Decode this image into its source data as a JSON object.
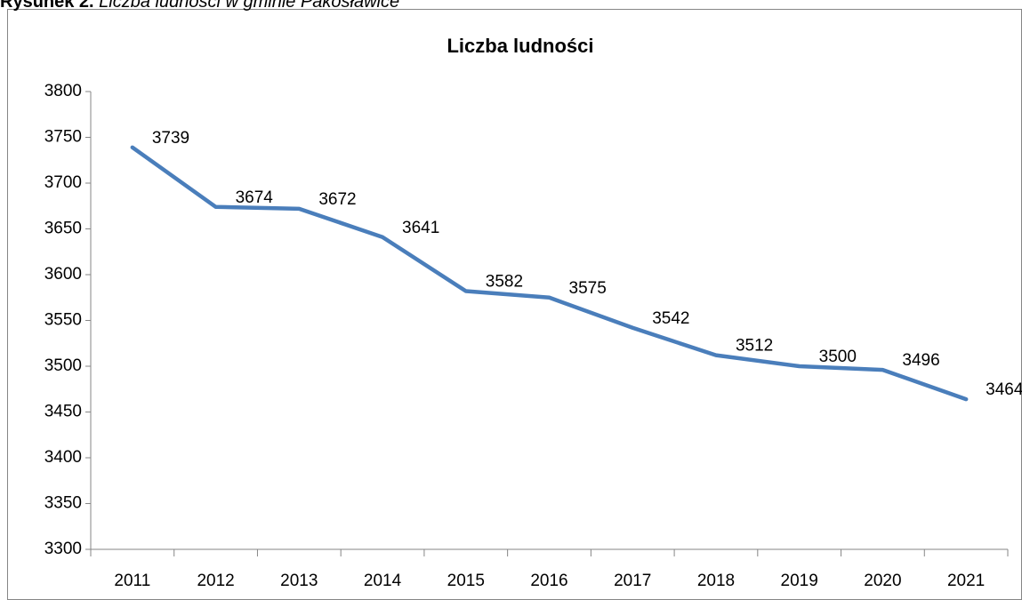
{
  "figure": {
    "label": "Rysunek 2.",
    "caption": "Liczba ludności w gminie Pakosławice"
  },
  "chart_data": {
    "type": "line",
    "title": "Liczba ludności",
    "categories": [
      "2011",
      "2012",
      "2013",
      "2014",
      "2015",
      "2016",
      "2017",
      "2018",
      "2019",
      "2020",
      "2021"
    ],
    "values": [
      3739,
      3674,
      3672,
      3641,
      3582,
      3575,
      3542,
      3512,
      3500,
      3496,
      3464
    ],
    "color": "#4a7ebb",
    "ylim": [
      3300,
      3800
    ],
    "yticks": [
      3300,
      3350,
      3400,
      3450,
      3500,
      3550,
      3600,
      3650,
      3700,
      3750,
      3800
    ],
    "grid": false
  }
}
